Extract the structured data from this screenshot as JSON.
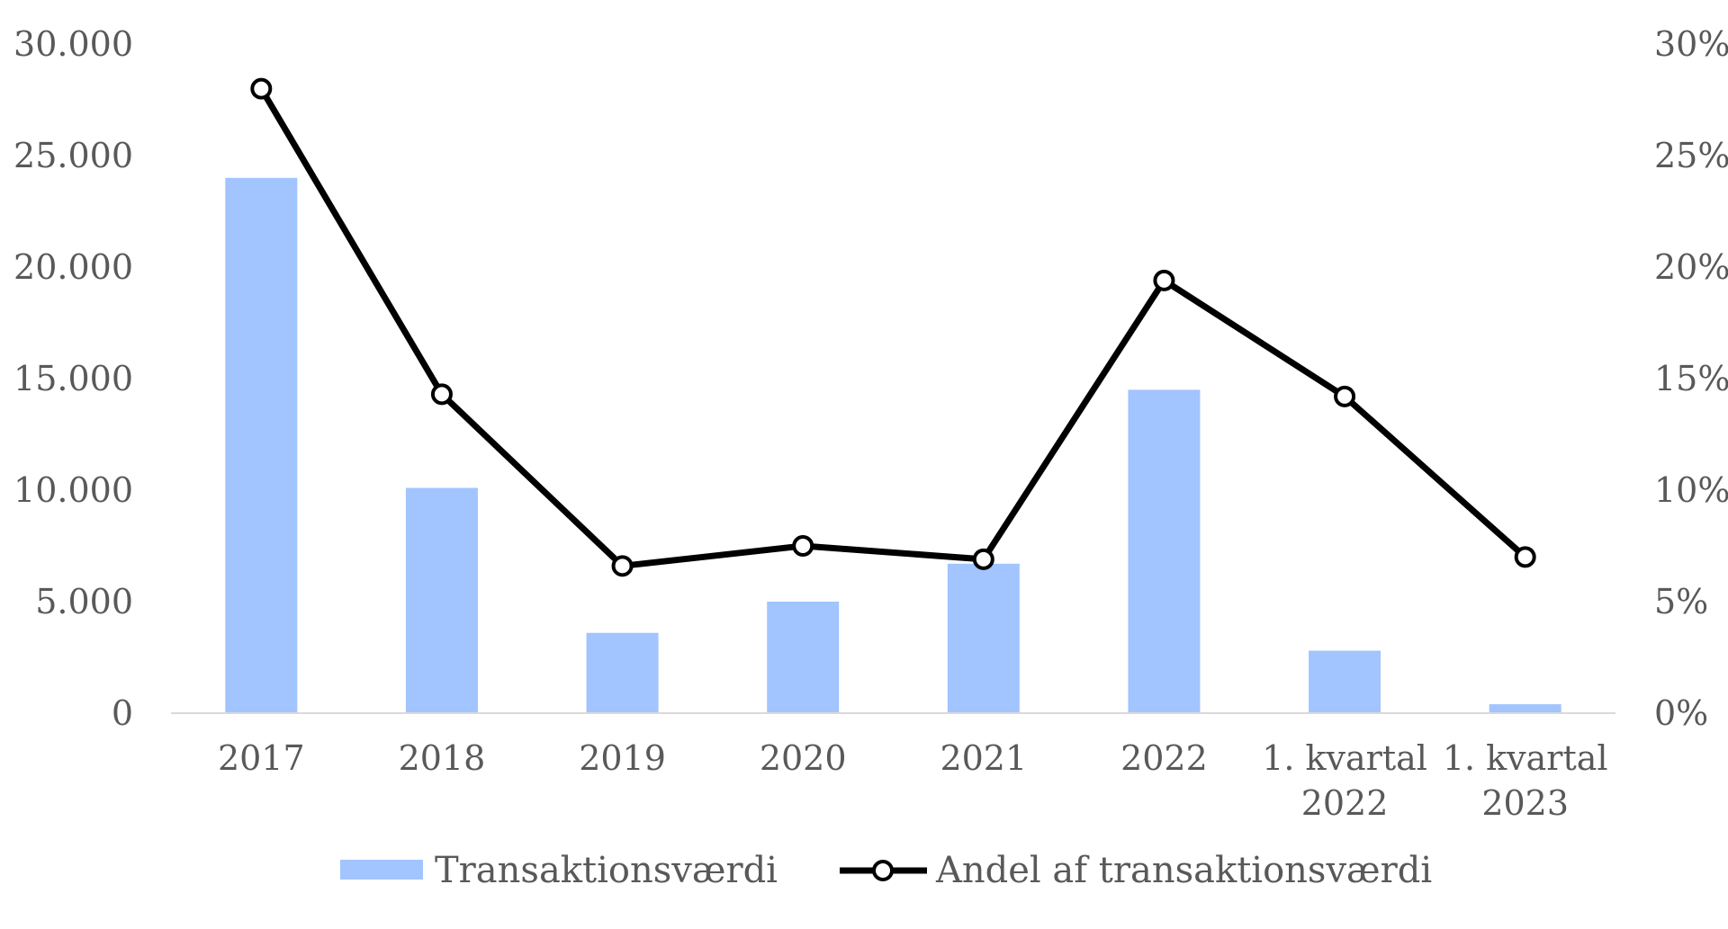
{
  "chart_data": {
    "type": "bar",
    "categories": [
      [
        "2017"
      ],
      [
        "2018"
      ],
      [
        "2019"
      ],
      [
        "2020"
      ],
      [
        "2021"
      ],
      [
        "2022"
      ],
      [
        "1. kvartal",
        "2022"
      ],
      [
        "1. kvartal",
        "2023"
      ]
    ],
    "series": [
      {
        "name": "Transaktionsværdi",
        "type": "bar",
        "axis": "left",
        "values": [
          24000,
          10100,
          3600,
          5000,
          6700,
          14500,
          2800,
          400
        ]
      },
      {
        "name": "Andel af transaktionsværdi",
        "type": "line",
        "axis": "right",
        "values": [
          28.0,
          14.3,
          6.6,
          7.5,
          6.9,
          19.4,
          14.2,
          7.0
        ]
      }
    ],
    "y_left": {
      "min": 0,
      "max": 30000,
      "ticks": [
        "0",
        "5.000",
        "10.000",
        "15.000",
        "20.000",
        "25.000",
        "30.000"
      ]
    },
    "y_right": {
      "min": 0,
      "max": 30,
      "ticks": [
        "0%",
        "5%",
        "10%",
        "15%",
        "20%",
        "25%",
        "30%"
      ]
    },
    "grid": false,
    "legend_position": "bottom",
    "colors": {
      "bar": "#A2C4FF",
      "line": "#000000",
      "marker_fill": "#ffffff",
      "axis_line": "#D9D9D9",
      "text": "#595959"
    }
  }
}
